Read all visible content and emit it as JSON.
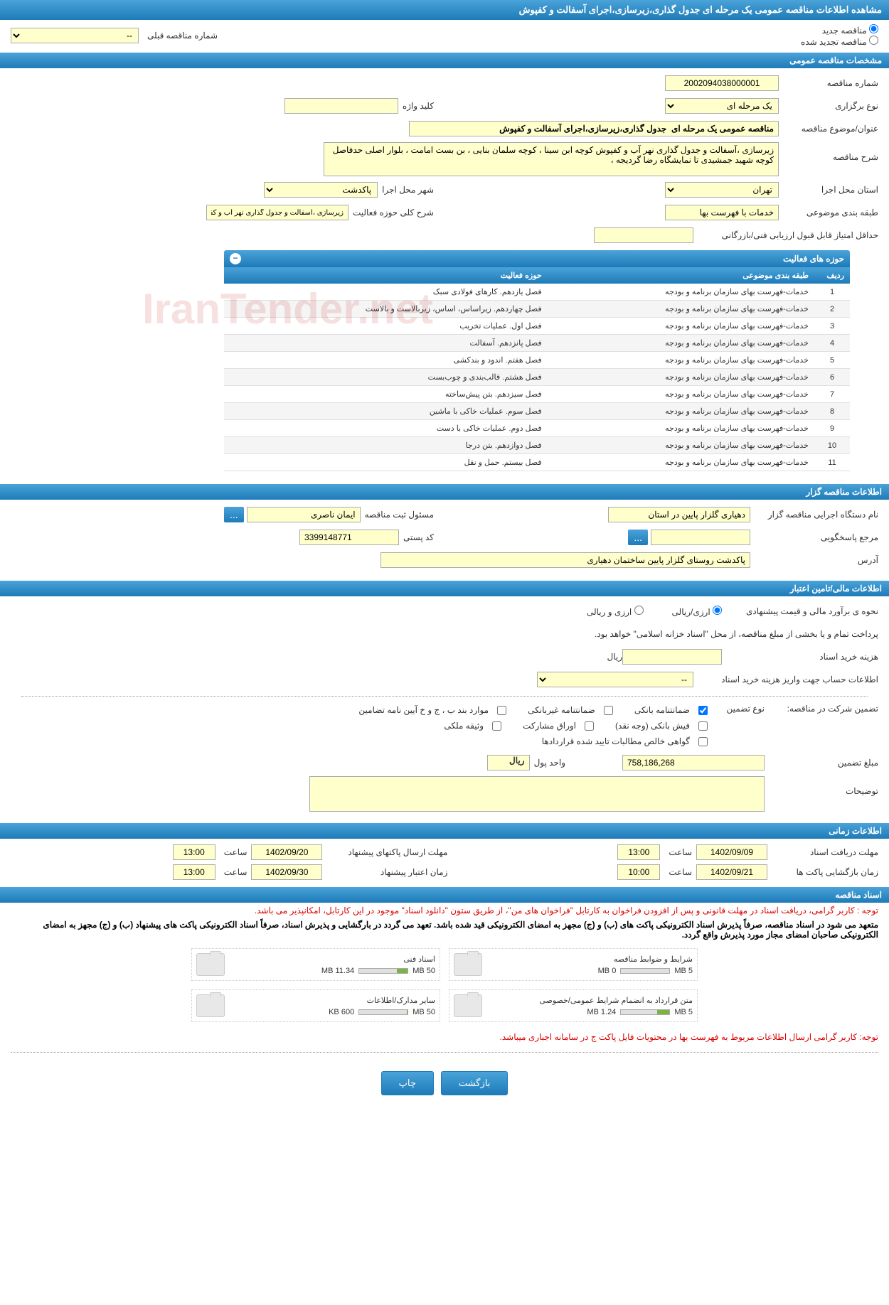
{
  "header": {
    "title": "مشاهده اطلاعات مناقصه عمومی یک مرحله ای جدول گذاری،زیرسازی،اجرای آسفالت و کفپوش"
  },
  "radio": {
    "new": "مناقصه جدید",
    "renewed": "مناقصه تجدید شده",
    "prev_label": "شماره مناقصه قبلی",
    "prev_placeholder": "--"
  },
  "general": {
    "section_title": "مشخصات مناقصه عمومی",
    "tender_no_label": "شماره مناقصه",
    "tender_no": "2002094038000001",
    "type_label": "نوع برگزاری",
    "type": "یک مرحله ای",
    "keyword_label": "کلید واژه",
    "keyword": "",
    "subject_label": "عنوان/موضوع مناقصه",
    "subject": "مناقصه عمومی یک مرحله ای  جدول گذاری،زیرسازی،اجرای آسفالت و کفپوش",
    "desc_label": "شرح مناقصه",
    "desc": "زیرسازی ،آسفالت و جدول گذاری نهر آب و کفپوش کوچه ابن سینا ، کوچه سلمان بنایی ، بن بست امامت ، بلوار اصلی حدفاصل کوچه شهید جمشیدی تا نمایشگاه رضا گردیجه ،",
    "province_label": "استان محل اجرا",
    "province": "تهران",
    "city_label": "شهر محل اجرا",
    "city": "پاکدشت",
    "class_label": "طبقه بندی موضوعی",
    "class": "خدمات با فهرست بها",
    "activity_label": "شرح کلی حوزه فعالیت",
    "activity": "زیرسازی ،آسفالت و جدول گذاری نهر آب و کفپوش",
    "min_score_label": "حداقل امتیاز قابل قبول ارزیابی فنی/بازرگانی",
    "min_score": ""
  },
  "activities": {
    "panel_title": "حوزه های فعالیت",
    "col_idx": "ردیف",
    "col_class": "طبقه بندی موضوعی",
    "col_activity": "حوزه فعالیت",
    "rows": [
      {
        "i": "1",
        "c": "خدمات-فهرست بهای سازمان برنامه و بودجه",
        "a": "فصل یازدهم. کارهای فولادی سبک"
      },
      {
        "i": "2",
        "c": "خدمات-فهرست بهای سازمان برنامه و بودجه",
        "a": "فصل چهاردهم. زیراساس، اساس، زیربالاست  و بالاست"
      },
      {
        "i": "3",
        "c": "خدمات-فهرست بهای سازمان برنامه و بودجه",
        "a": "فصل اول. عملیات تخریب"
      },
      {
        "i": "4",
        "c": "خدمات-فهرست بهای سازمان برنامه و بودجه",
        "a": "فصل پانزدهم. آسفالت"
      },
      {
        "i": "5",
        "c": "خدمات-فهرست بهای سازمان برنامه و بودجه",
        "a": "فصل هفتم. اندود و بندکشی"
      },
      {
        "i": "6",
        "c": "خدمات-فهرست بهای سازمان برنامه و بودجه",
        "a": "فصل هشتم. قالب‌بندی و چوب‌بست"
      },
      {
        "i": "7",
        "c": "خدمات-فهرست بهای سازمان برنامه و بودجه",
        "a": "فصل سیزدهم. بتن پیش‌ساخته"
      },
      {
        "i": "8",
        "c": "خدمات-فهرست بهای سازمان برنامه و بودجه",
        "a": "فصل سوم. عملیات خاکی با ماشین"
      },
      {
        "i": "9",
        "c": "خدمات-فهرست بهای سازمان برنامه و بودجه",
        "a": "فصل دوم. عملیات خاکی با دست"
      },
      {
        "i": "10",
        "c": "خدمات-فهرست بهای سازمان برنامه و بودجه",
        "a": "فصل دوازدهم. بتن درجا"
      },
      {
        "i": "11",
        "c": "خدمات-فهرست بهای سازمان برنامه و بودجه",
        "a": "فصل بیستم. حمل و نقل"
      }
    ]
  },
  "owner": {
    "section_title": "اطلاعات مناقصه گزار",
    "org_label": "نام دستگاه اجرایی مناقصه گزار",
    "org": "دهیاری گلزار پایین در استان",
    "resp_label": "مسئول ثبت مناقصه",
    "resp": "ایمان ناصری",
    "ref_label": "مرجع پاسخگویی",
    "ref": "",
    "postal_label": "کد پستی",
    "postal": "3399148771",
    "addr_label": "آدرس",
    "addr": "پاکدشت روستای گلزار پایین ساختمان دهیاری"
  },
  "financial": {
    "section_title": "اطلاعات مالی/تامین اعتبار",
    "estimate_label": "نحوه ی برآورد مالی و قیمت پیشنهادی",
    "opt_rial": "ارزی/ریالی",
    "opt_currency": "ارزی و ریالی",
    "payment_note": "پرداخت تمام و یا بخشی از مبلغ مناقصه، از محل \"اسناد خزانه اسلامی\" خواهد بود.",
    "doc_cost_label": "هزینه خرید اسناد",
    "doc_cost": "",
    "doc_cost_unit": "ریال",
    "account_label": "اطلاعات حساب جهت واریز هزینه خرید اسناد",
    "account_placeholder": "--",
    "guarantee_label": "تضمین شرکت در مناقصه:",
    "guarantee_type_label": "نوع تضمین",
    "g1": "ضمانتنامه بانکی",
    "g2": "ضمانتنامه غیربانکی",
    "g3": "موارد بند ب ، ج و خ آیین نامه تضامین",
    "g4": "فیش بانکی (وجه نقد)",
    "g5": "اوراق مشارکت",
    "g6": "وثیقه ملکی",
    "g7": "گواهی خالص مطالبات تایید شده قراردادها",
    "amount_label": "مبلغ تضمین",
    "amount": "758,186,268",
    "amount_unit_label": "واحد پول",
    "amount_unit": "ریال",
    "notes_label": "توضیحات",
    "notes": ""
  },
  "timing": {
    "section_title": "اطلاعات زمانی",
    "receive_label": "مهلت دریافت اسناد",
    "receive_date": "1402/09/09",
    "receive_time_label": "ساعت",
    "receive_time": "13:00",
    "send_label": "مهلت ارسال پاکتهای پیشنهاد",
    "send_date": "1402/09/20",
    "send_time_label": "ساعت",
    "send_time": "13:00",
    "open_label": "زمان بازگشایی پاکت ها",
    "open_date": "1402/09/21",
    "open_time_label": "ساعت",
    "open_time": "10:00",
    "valid_label": "زمان اعتبار پیشنهاد",
    "valid_date": "1402/09/30",
    "valid_time_label": "ساعت",
    "valid_time": "13:00"
  },
  "docs": {
    "section_title": "اسناد مناقصه",
    "note1": "توجه : کاربر گرامی، دریافت اسناد در مهلت قانونی و پس از افزودن فراخوان به کارتابل \"فراخوان های من\"، از طریق ستون \"دانلود اسناد\" موجود در این کارتابل، امکانپذیر می باشد.",
    "note2": "متعهد می شود در اسناد مناقصه، صرفاً پذیرش اسناد الکترونیکی پاکت های (ب) و (ج) مجهز به امضای الکترونیکی قید شده باشد. تعهد می گردد در بارگشایی و پذیرش اسناد، صرفاً اسناد الکترونیکی پاکت های پیشنهاد (ب) و (ج) مجهز به امضای الکترونیکی صاحبان امضای مجاز مورد پذیرش واقع گردد.",
    "note3": "توجه: کاربر گرامی ارسال اطلاعات مربوط به فهرست بها در محتویات فایل پاکت ج در سامانه اجباری میباشد.",
    "items": [
      {
        "title": "شرایط و ضوابط مناقصه",
        "used": "0 MB",
        "total": "5 MB",
        "pct": 0
      },
      {
        "title": "اسناد فنی",
        "used": "11.34 MB",
        "total": "50 MB",
        "pct": 23
      },
      {
        "title": "متن قرارداد به انضمام شرایط عمومی/خصوصی",
        "used": "1.24 MB",
        "total": "5 MB",
        "pct": 25
      },
      {
        "title": "سایر مدارک/اطلاعات",
        "used": "600 KB",
        "total": "50 MB",
        "pct": 2
      }
    ]
  },
  "footer": {
    "print": "چاپ",
    "back": "بازگشت"
  },
  "ellipsis": "..."
}
